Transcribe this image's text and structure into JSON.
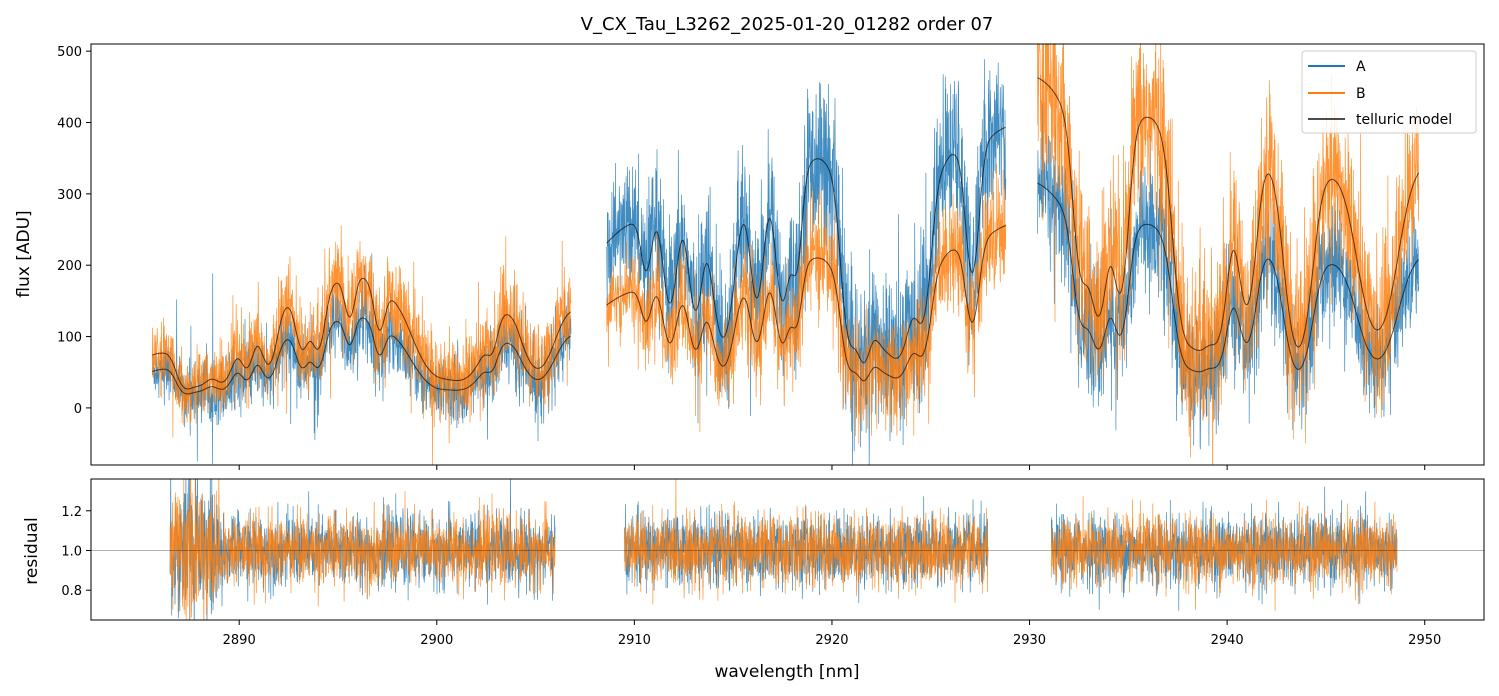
{
  "chart_data": [
    {
      "type": "line",
      "title": "V_CX_Tau_L3262_2025-01-20_01282  order 07",
      "xlabel": "",
      "ylabel": "flux [ADU]",
      "xlim": [
        2882.5,
        2953.0
      ],
      "ylim": [
        -80,
        510
      ],
      "yticks": [
        0,
        100,
        200,
        300,
        400,
        500
      ],
      "legend": {
        "location": "top-right",
        "entries": [
          "A",
          "B",
          "telluric model"
        ]
      },
      "segments": [
        [
          2885.6,
          2906.8
        ],
        [
          2908.6,
          2928.8
        ],
        [
          2930.4,
          2949.7
        ]
      ],
      "series": [
        {
          "name": "A",
          "color": "#1f77b4",
          "continuum_points": [
            [
              2885.6,
              55
            ],
            [
              2888,
              90
            ],
            [
              2892,
              115
            ],
            [
              2896,
              150
            ],
            [
              2900,
              100
            ],
            [
              2904,
              140
            ],
            [
              2906.8,
              120
            ],
            [
              2908.6,
              240
            ],
            [
              2911,
              300
            ],
            [
              2914,
              340
            ],
            [
              2917,
              370
            ],
            [
              2920,
              400
            ],
            [
              2924,
              380
            ],
            [
              2926,
              410
            ],
            [
              2928.8,
              400
            ],
            [
              2930.4,
              320
            ],
            [
              2934,
              305
            ],
            [
              2938,
              295
            ],
            [
              2942,
              280
            ],
            [
              2946,
              250
            ],
            [
              2949.7,
              240
            ]
          ]
        },
        {
          "name": "B",
          "color": "#ff7f0e",
          "continuum_points": [
            [
              2885.6,
              80
            ],
            [
              2888,
              120
            ],
            [
              2892,
              170
            ],
            [
              2896,
              215
            ],
            [
              2900,
              160
            ],
            [
              2904,
              200
            ],
            [
              2906.8,
              160
            ],
            [
              2908.6,
              150
            ],
            [
              2911,
              190
            ],
            [
              2914,
              200
            ],
            [
              2917,
              225
            ],
            [
              2920,
              240
            ],
            [
              2924,
              230
            ],
            [
              2926,
              255
            ],
            [
              2928.8,
              260
            ],
            [
              2930.4,
              470
            ],
            [
              2934,
              480
            ],
            [
              2938,
              470
            ],
            [
              2942,
              440
            ],
            [
              2946,
              400
            ],
            [
              2949.7,
              380
            ]
          ]
        },
        {
          "name": "telluric model",
          "color": "#000000"
        }
      ],
      "absorption_lines": [
        {
          "center": 2887.2,
          "depth": 0.7,
          "width": 0.35
        },
        {
          "center": 2888.0,
          "depth": 0.85,
          "width": 0.5
        },
        {
          "center": 2889.2,
          "depth": 0.85,
          "width": 0.45
        },
        {
          "center": 2890.4,
          "depth": 0.6,
          "width": 0.3
        },
        {
          "center": 2891.5,
          "depth": 0.7,
          "width": 0.35
        },
        {
          "center": 2893.2,
          "depth": 0.55,
          "width": 0.3
        },
        {
          "center": 2894.0,
          "depth": 0.6,
          "width": 0.3
        },
        {
          "center": 2895.6,
          "depth": 0.35,
          "width": 0.25
        },
        {
          "center": 2897.1,
          "depth": 0.4,
          "width": 0.25
        },
        {
          "center": 2899.9,
          "depth": 0.8,
          "width": 0.9
        },
        {
          "center": 2901.5,
          "depth": 0.85,
          "width": 0.8
        },
        {
          "center": 2902.8,
          "depth": 0.3,
          "width": 0.25
        },
        {
          "center": 2905.1,
          "depth": 0.9,
          "width": 0.7
        },
        {
          "center": 2910.6,
          "depth": 0.3,
          "width": 0.25
        },
        {
          "center": 2911.8,
          "depth": 0.55,
          "width": 0.3
        },
        {
          "center": 2913.1,
          "depth": 0.6,
          "width": 0.3
        },
        {
          "center": 2914.5,
          "depth": 0.95,
          "width": 0.45
        },
        {
          "center": 2916.2,
          "depth": 0.6,
          "width": 0.3
        },
        {
          "center": 2917.5,
          "depth": 0.65,
          "width": 0.3
        },
        {
          "center": 2918.2,
          "depth": 0.45,
          "width": 0.25
        },
        {
          "center": 2920.9,
          "depth": 0.9,
          "width": 0.35
        },
        {
          "center": 2921.6,
          "depth": 0.8,
          "width": 0.3
        },
        {
          "center": 2922.5,
          "depth": 0.85,
          "width": 0.6
        },
        {
          "center": 2923.5,
          "depth": 0.9,
          "width": 0.5
        },
        {
          "center": 2924.6,
          "depth": 0.7,
          "width": 0.35
        },
        {
          "center": 2927.1,
          "depth": 0.6,
          "width": 0.3
        },
        {
          "center": 2932.6,
          "depth": 0.6,
          "width": 0.35
        },
        {
          "center": 2933.5,
          "depth": 0.9,
          "width": 0.4
        },
        {
          "center": 2934.6,
          "depth": 0.75,
          "width": 0.35
        },
        {
          "center": 2937.8,
          "depth": 0.85,
          "width": 0.45
        },
        {
          "center": 2938.7,
          "depth": 1.0,
          "width": 0.5
        },
        {
          "center": 2939.6,
          "depth": 0.8,
          "width": 0.4
        },
        {
          "center": 2941.0,
          "depth": 0.75,
          "width": 0.4
        },
        {
          "center": 2943.6,
          "depth": 1.2,
          "width": 0.55
        },
        {
          "center": 2947.6,
          "depth": 1.0,
          "width": 0.8
        }
      ]
    },
    {
      "type": "line",
      "title": "",
      "xlabel": "wavelength [nm]",
      "ylabel": "residual",
      "xlim": [
        2882.5,
        2953.0
      ],
      "ylim": [
        0.65,
        1.36
      ],
      "xticks": [
        2890,
        2900,
        2910,
        2920,
        2930,
        2940,
        2950
      ],
      "yticks": [
        0.8,
        1.0,
        1.2
      ],
      "reference_line": 1.0,
      "segments": [
        [
          2886.5,
          2906.0
        ],
        [
          2909.5,
          2927.9
        ],
        [
          2931.1,
          2948.6
        ]
      ],
      "series": [
        {
          "name": "A",
          "color": "#1f77b4",
          "center": 1.0,
          "scatter": 0.09
        },
        {
          "name": "B",
          "color": "#ff7f0e",
          "center": 1.0,
          "scatter": 0.09
        }
      ]
    }
  ]
}
